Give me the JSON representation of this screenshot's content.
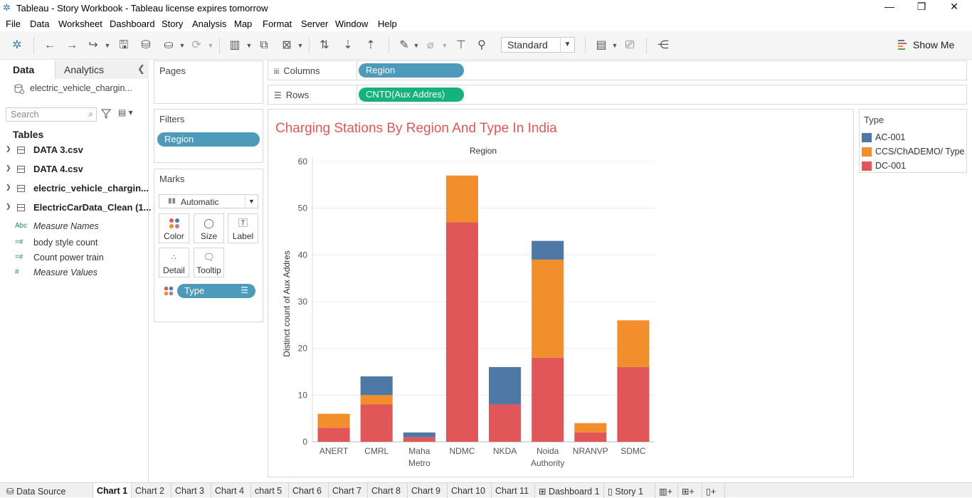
{
  "window": {
    "title": "Tableau - Story Workbook - Tableau license expires tomorrow"
  },
  "menu": [
    "File",
    "Data",
    "Worksheet",
    "Dashboard",
    "Story",
    "Analysis",
    "Map",
    "Format",
    "Server",
    "Window",
    "Help"
  ],
  "toolbar": {
    "fit_mode": "Standard",
    "show_me": "Show Me"
  },
  "data_pane": {
    "tabs": [
      "Data",
      "Analytics"
    ],
    "source": "electric_vehicle_chargin...",
    "search_placeholder": "Search",
    "tables_heading": "Tables",
    "tables": [
      "DATA 3.csv",
      "DATA 4.csv",
      "electric_vehicle_chargin...",
      "ElectricCarData_Clean (1..."
    ],
    "fields": [
      {
        "label": "Measure Names",
        "icon": "Abc",
        "italic": true
      },
      {
        "label": "body style count",
        "icon": "=#",
        "italic": false
      },
      {
        "label": "Count power train",
        "icon": "=#",
        "italic": false
      },
      {
        "label": "Measure Values",
        "icon": "#",
        "italic": true
      }
    ]
  },
  "cards": {
    "pages": "Pages",
    "filters": "Filters",
    "filter_pill": "Region",
    "marks": "Marks",
    "mark_type": "Automatic",
    "mark_buttons": [
      "Color",
      "Size",
      "Label",
      "Detail",
      "Tooltip"
    ],
    "type_pill": "Type"
  },
  "shelves": {
    "columns_label": "Columns",
    "columns_pill": "Region",
    "rows_label": "Rows",
    "rows_pill": "CNTD(Aux Addres)"
  },
  "legend": {
    "title": "Type",
    "items": [
      {
        "label": "AC-001",
        "color": "#4e79a7"
      },
      {
        "label": "CCS/ChADEMO/ Type..",
        "color": "#f28e2b"
      },
      {
        "label": "DC-001",
        "color": "#e15759"
      }
    ]
  },
  "chart_data": {
    "type": "bar",
    "stacked": true,
    "title": "Charging Stations By Region And Type In India",
    "title_color": "#e15759",
    "column_header": "Region",
    "ylabel": "Distinct count of Aux Addres",
    "ylim": [
      0,
      60
    ],
    "yticks": [
      0,
      10,
      20,
      30,
      40,
      50,
      60
    ],
    "categories": [
      [
        "ANERT"
      ],
      [
        "CMRL"
      ],
      [
        "Maha",
        "Metro"
      ],
      [
        "NDMC"
      ],
      [
        "NKDA"
      ],
      [
        "Noida",
        "Authority"
      ],
      [
        "NRANVP"
      ],
      [
        "SDMC"
      ]
    ],
    "series": [
      {
        "name": "DC-001",
        "color": "#e15759",
        "values": [
          3,
          8,
          1,
          47,
          8,
          18,
          2,
          16
        ]
      },
      {
        "name": "CCS/ChADEMO/ Type..",
        "color": "#f28e2b",
        "values": [
          3,
          2,
          0,
          10,
          0,
          21,
          2,
          10
        ]
      },
      {
        "name": "AC-001",
        "color": "#4e79a7",
        "values": [
          0,
          4,
          1,
          0,
          8,
          4,
          0,
          0
        ]
      }
    ]
  },
  "tabs": [
    "Data Source",
    "Chart 1",
    "Chart 2",
    "Chart 3",
    "Chart 4",
    "chart 5",
    "Chart 6",
    "Chart 7",
    "Chart 8",
    "Chart 9",
    "Chart 10",
    "Chart 11",
    "Dashboard 1",
    "Story 1"
  ],
  "active_tab": "Chart 1"
}
